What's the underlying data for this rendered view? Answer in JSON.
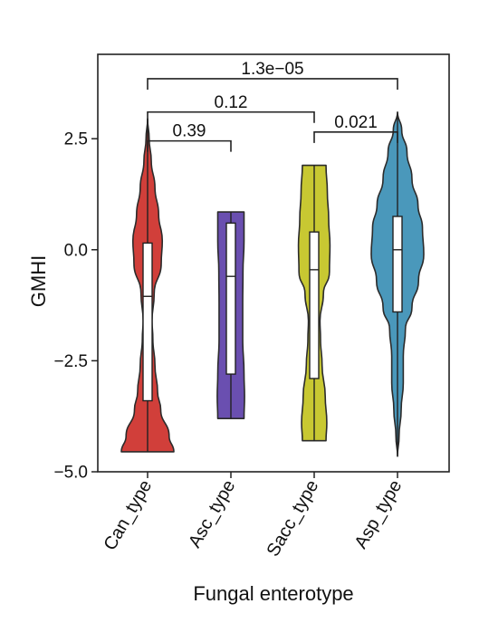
{
  "chart_data": {
    "type": "violin",
    "xlabel": "Fungal enterotype",
    "ylabel": "GMHI",
    "ylim": [
      -5.0,
      4.4
    ],
    "yticks": [
      {
        "value": 2.5,
        "label": "2.5"
      },
      {
        "value": 0.0,
        "label": "0.0"
      },
      {
        "value": -2.5,
        "label": "−2.5"
      },
      {
        "value": -5.0,
        "label": "−5.0"
      }
    ],
    "categories": [
      "Can_type",
      "Asc_type",
      "Sacc_type",
      "Asp_type"
    ],
    "groups": [
      {
        "category": "Can_type",
        "color": "#d13f3a",
        "min": -4.55,
        "q1": -3.4,
        "median": -1.05,
        "q3": 0.15,
        "max": 2.95,
        "density_y": [
          -4.55,
          -4.2,
          -3.6,
          -3.2,
          -2.6,
          -2.0,
          -1.6,
          -1.0,
          -0.3,
          0.2,
          0.8,
          1.4,
          2.0,
          2.5,
          2.95
        ],
        "density_w": [
          1.0,
          0.82,
          0.5,
          0.38,
          0.28,
          0.2,
          0.17,
          0.25,
          0.52,
          0.56,
          0.42,
          0.28,
          0.14,
          0.06,
          0.0
        ]
      },
      {
        "category": "Asc_type",
        "color": "#6a4fb0",
        "min": -3.8,
        "q1": -2.8,
        "median": -0.6,
        "q3": 0.6,
        "max": 0.85,
        "density_y": [
          -3.8,
          -3.3,
          -2.8,
          -2.0,
          -1.2,
          -0.5,
          0.2,
          0.85
        ],
        "density_w": [
          0.5,
          0.52,
          0.5,
          0.45,
          0.45,
          0.46,
          0.5,
          0.5
        ]
      },
      {
        "category": "Sacc_type",
        "color": "#c8c832",
        "min": -4.3,
        "q1": -2.9,
        "median": -0.45,
        "q3": 0.4,
        "max": 1.9,
        "density_y": [
          -4.3,
          -3.9,
          -3.3,
          -2.6,
          -2.0,
          -1.6,
          -1.0,
          -0.5,
          0.1,
          0.7,
          1.3,
          1.9
        ],
        "density_w": [
          0.45,
          0.48,
          0.42,
          0.3,
          0.24,
          0.22,
          0.35,
          0.58,
          0.6,
          0.55,
          0.5,
          0.45
        ]
      },
      {
        "category": "Asp_type",
        "color": "#4a98bb",
        "min": -4.65,
        "q1": -1.4,
        "median": 0.0,
        "q3": 0.75,
        "max": 3.1,
        "density_y": [
          -4.65,
          -4.2,
          -3.6,
          -3.0,
          -2.4,
          -1.8,
          -1.3,
          -0.7,
          -0.1,
          0.5,
          1.0,
          1.6,
          2.2,
          2.7,
          3.1
        ],
        "density_w": [
          0.0,
          0.06,
          0.14,
          0.22,
          0.22,
          0.3,
          0.55,
          0.8,
          1.0,
          0.95,
          0.78,
          0.55,
          0.36,
          0.16,
          0.0
        ]
      }
    ],
    "comparisons": [
      {
        "from": "Can_type",
        "to": "Asp_type",
        "label": "1.3e−05",
        "y": 3.85
      },
      {
        "from": "Can_type",
        "to": "Sacc_type",
        "label": "0.12",
        "y": 3.1
      },
      {
        "from": "Can_type",
        "to": "Asc_type",
        "label": "0.39",
        "y": 2.45
      },
      {
        "from": "Sacc_type",
        "to": "Asp_type",
        "label": "0.021",
        "y": 2.65
      }
    ]
  }
}
